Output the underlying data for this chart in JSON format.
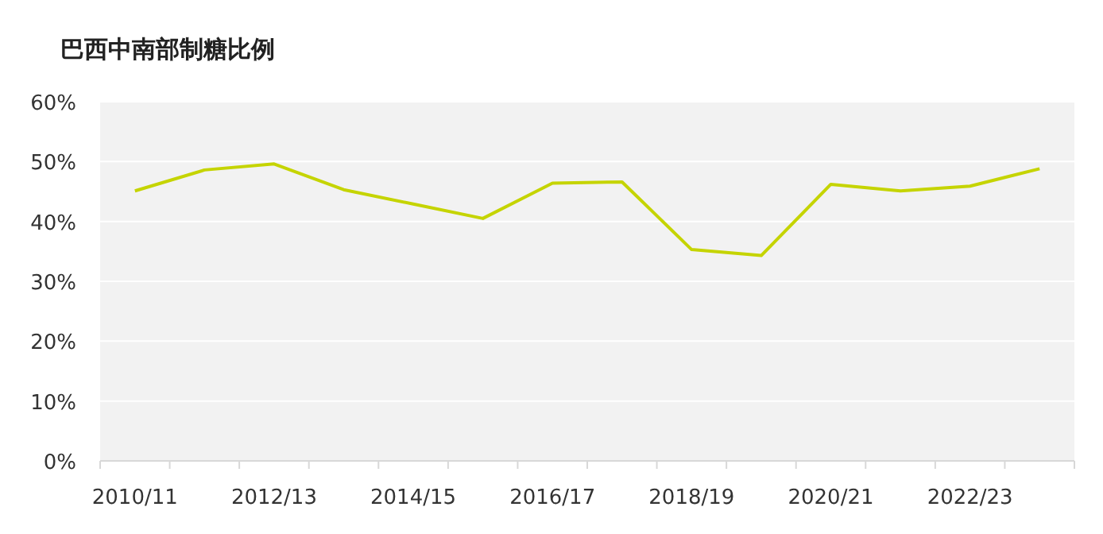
{
  "chart_data": {
    "type": "line",
    "title": "巴西中南部制糖比例",
    "categories": [
      "2010/11",
      null,
      "2012/13",
      null,
      "2014/15",
      null,
      "2016/17",
      null,
      "2018/19",
      null,
      "2020/21",
      null,
      "2022/23",
      null
    ],
    "series": [
      {
        "color": "#c5d400",
        "values": [
          45.1,
          48.6,
          49.6,
          45.3,
          42.9,
          40.5,
          46.4,
          46.6,
          35.3,
          34.3,
          46.2,
          45.1,
          45.9,
          48.8
        ]
      }
    ],
    "ylim": [
      0,
      60
    ],
    "yticks": [
      {
        "value": 0,
        "label": "0%"
      },
      {
        "value": 10,
        "label": "10%"
      },
      {
        "value": 20,
        "label": "20%"
      },
      {
        "value": 30,
        "label": "30%"
      },
      {
        "value": 40,
        "label": "40%"
      },
      {
        "value": 50,
        "label": "50%"
      },
      {
        "value": 60,
        "label": "60%"
      }
    ],
    "grid": "y",
    "marker": "none",
    "line_style": "solid"
  }
}
